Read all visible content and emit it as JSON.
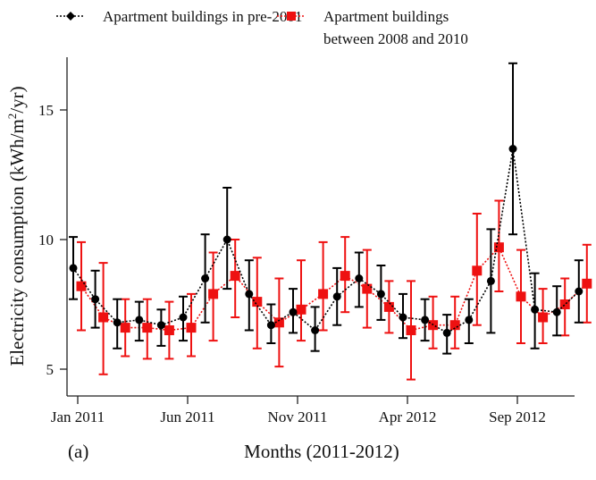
{
  "chart_data": {
    "type": "line",
    "title": "",
    "panel_label": "(a)",
    "xlabel": "Months (2011-2012)",
    "ylabel": "Electricity consumption (kWh/m²/yr)",
    "ylabel_parts": {
      "main": "Electricity consumption (kWh/m",
      "sup": "2",
      "tail": "/yr)"
    },
    "ylim": [
      3.9,
      16.8
    ],
    "yticks": [
      5,
      10,
      15
    ],
    "ytick_labels": [
      "5",
      "10",
      "15"
    ],
    "x": [
      "Jan 2011",
      "Feb 2011",
      "Mar 2011",
      "Apr 2011",
      "May 2011",
      "Jun 2011",
      "Jul 2011",
      "Aug 2011",
      "Sep 2011",
      "Oct 2011",
      "Nov 2011",
      "Dec 2011",
      "Jan 2012",
      "Feb 2012",
      "Mar 2012",
      "Apr 2012",
      "May 2012",
      "Jun 2012",
      "Jul 2012",
      "Aug 2012",
      "Sep 2012",
      "Oct 2012",
      "Nov 2012",
      "Dec 2012"
    ],
    "xticks": [
      0,
      5,
      10,
      15,
      20
    ],
    "xtick_labels": [
      "Jan 2011",
      "Jun 2011",
      "Nov 2011",
      "Apr 2012",
      "Sep 2012"
    ],
    "grid": false,
    "legend_placement": "top",
    "series": [
      {
        "name": "Apartment buildings in pre-2001",
        "color": "#000000",
        "marker": "circle",
        "line": "dotted",
        "values": [
          8.9,
          7.7,
          6.8,
          6.9,
          6.7,
          7.0,
          8.5,
          10.0,
          7.9,
          6.7,
          7.2,
          6.5,
          7.8,
          8.5,
          7.9,
          7.0,
          6.9,
          6.4,
          6.9,
          8.4,
          13.5,
          7.3,
          7.2,
          8.0
        ],
        "err_low": [
          7.7,
          6.6,
          5.8,
          6.1,
          5.9,
          6.1,
          6.8,
          8.1,
          6.5,
          6.0,
          6.4,
          5.7,
          6.7,
          7.4,
          6.9,
          6.2,
          6.1,
          5.6,
          6.0,
          6.4,
          10.2,
          5.8,
          6.3,
          6.8
        ],
        "err_high": [
          10.1,
          8.8,
          7.7,
          7.6,
          7.3,
          7.8,
          10.2,
          12.0,
          9.2,
          7.5,
          8.1,
          7.4,
          8.9,
          9.5,
          9.0,
          7.9,
          7.7,
          7.1,
          7.7,
          10.4,
          16.8,
          8.7,
          8.2,
          9.2
        ]
      },
      {
        "name": "Apartment buildings between 2008 and 2010",
        "name_lines": [
          "Apartment buildings",
          "between 2008 and 2010"
        ],
        "color": "#ee1111",
        "marker": "square",
        "line": "dotted",
        "values": [
          8.2,
          7.0,
          6.6,
          6.6,
          6.5,
          6.6,
          7.9,
          8.6,
          7.6,
          6.8,
          7.3,
          7.9,
          8.6,
          8.1,
          7.4,
          6.5,
          6.7,
          6.7,
          8.8,
          9.7,
          7.8,
          7.0,
          7.5,
          8.3
        ],
        "err_low": [
          6.5,
          4.8,
          5.5,
          5.4,
          5.4,
          5.5,
          6.1,
          7.0,
          5.8,
          5.1,
          6.1,
          6.5,
          7.2,
          6.6,
          6.4,
          4.6,
          5.8,
          5.8,
          6.7,
          8.0,
          6.0,
          6.0,
          6.3,
          6.8
        ],
        "err_high": [
          9.9,
          9.1,
          7.7,
          7.7,
          7.6,
          7.9,
          9.5,
          10.0,
          9.3,
          8.5,
          9.2,
          9.9,
          10.1,
          9.6,
          8.4,
          8.4,
          7.8,
          7.8,
          11.0,
          11.5,
          9.6,
          8.1,
          8.5,
          9.8
        ]
      }
    ]
  }
}
